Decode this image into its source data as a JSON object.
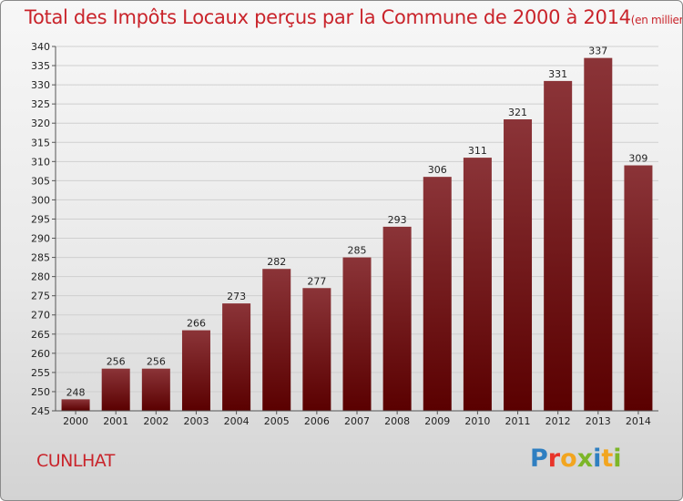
{
  "header": {
    "title": "Total des Impôts Locaux perçus par la Commune de 2000 à 2014",
    "unit": "(en milliers d'€)"
  },
  "footer": {
    "commune": "CUNLHAT",
    "logo": [
      "P",
      "r",
      "o",
      "x",
      "i",
      "t",
      "i"
    ]
  },
  "colors": {
    "title": "#c9242b",
    "bar_top": "#8b3438",
    "bar_bottom": "#5a0000",
    "logo": [
      "#2f7fc1",
      "#e8342a",
      "#f2a51f",
      "#7cb628",
      "#2f7fc1",
      "#f2a51f",
      "#7cb628"
    ]
  },
  "chart_data": {
    "type": "bar",
    "title": "Total des Impôts Locaux perçus par la Commune de 2000 à 2014",
    "xlabel": "",
    "ylabel": "",
    "categories": [
      "2000",
      "2001",
      "2002",
      "2003",
      "2004",
      "2005",
      "2006",
      "2007",
      "2008",
      "2009",
      "2010",
      "2011",
      "2012",
      "2013",
      "2014"
    ],
    "values": [
      248,
      256,
      256,
      266,
      273,
      282,
      277,
      285,
      293,
      306,
      311,
      321,
      331,
      337,
      309
    ],
    "ylim": [
      245,
      340
    ],
    "yticks": [
      245,
      250,
      255,
      260,
      265,
      270,
      275,
      280,
      285,
      290,
      295,
      300,
      305,
      310,
      315,
      320,
      325,
      330,
      335,
      340
    ],
    "grid": true
  }
}
